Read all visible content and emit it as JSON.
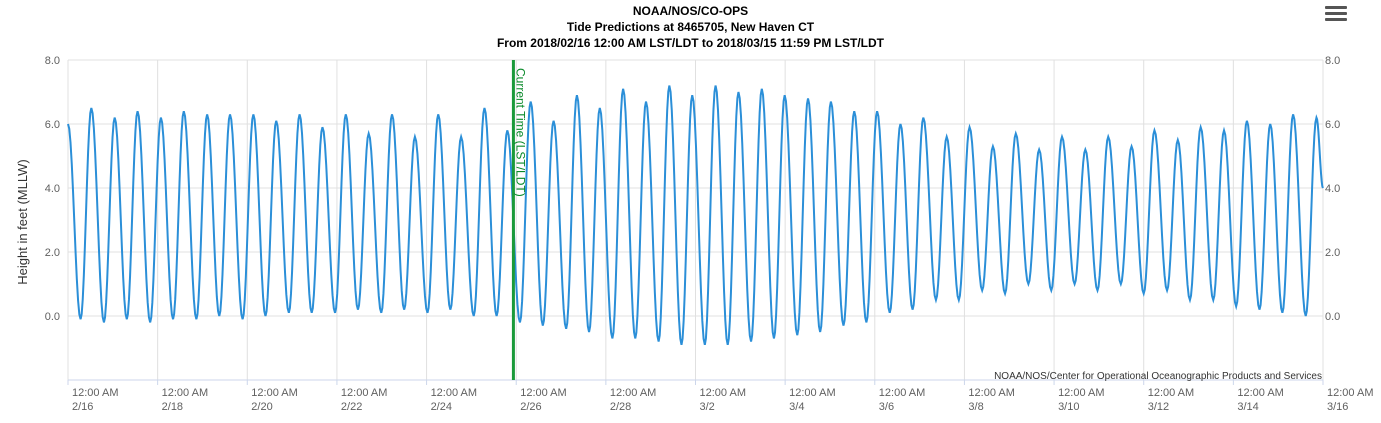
{
  "header": {
    "line1": "NOAA/NOS/CO-OPS",
    "line2": "Tide Predictions at 8465705, New Haven CT",
    "line3": "From 2018/02/16 12:00 AM LST/LDT to 2018/03/15 11:59 PM LST/LDT",
    "menu_icon": "hamburger-menu-icon"
  },
  "chart_data": {
    "type": "line",
    "title": "Tide Predictions at 8465705, New Haven CT",
    "ylabel": "Height in feet (MLLW)",
    "xlabel": "",
    "ylim": [
      -2,
      8
    ],
    "yticks": [
      "8.0",
      "6.0",
      "4.0",
      "2.0",
      "0.0"
    ],
    "xlim": [
      "2018-02-16T00:00",
      "2018-03-16T00:00"
    ],
    "xticks": [
      {
        "time": "12:00 AM",
        "date": "2/16"
      },
      {
        "time": "12:00 AM",
        "date": "2/18"
      },
      {
        "time": "12:00 AM",
        "date": "2/20"
      },
      {
        "time": "12:00 AM",
        "date": "2/22"
      },
      {
        "time": "12:00 AM",
        "date": "2/24"
      },
      {
        "time": "12:00 AM",
        "date": "2/26"
      },
      {
        "time": "12:00 AM",
        "date": "2/28"
      },
      {
        "time": "12:00 AM",
        "date": "3/2"
      },
      {
        "time": "12:00 AM",
        "date": "3/4"
      },
      {
        "time": "12:00 AM",
        "date": "3/6"
      },
      {
        "time": "12:00 AM",
        "date": "3/8"
      },
      {
        "time": "12:00 AM",
        "date": "3/10"
      },
      {
        "time": "12:00 AM",
        "date": "3/12"
      },
      {
        "time": "12:00 AM",
        "date": "3/14"
      },
      {
        "time": "12:00 AM",
        "date": "3/16"
      }
    ],
    "grid": true,
    "series": [
      {
        "color": "#2b8fd8",
        "values": [
          {
            "t": "2018-02-16T00:00",
            "h": 6.0
          },
          {
            "t": "2018-02-16T06:45",
            "h": -0.1
          },
          {
            "t": "2018-02-16T12:30",
            "h": 6.5
          },
          {
            "t": "2018-02-16T19:15",
            "h": -0.2
          },
          {
            "t": "2018-02-17T01:00",
            "h": 6.2
          },
          {
            "t": "2018-02-17T07:30",
            "h": -0.1
          },
          {
            "t": "2018-02-17T13:15",
            "h": 6.4
          },
          {
            "t": "2018-02-17T20:00",
            "h": -0.2
          },
          {
            "t": "2018-02-18T01:45",
            "h": 6.2
          },
          {
            "t": "2018-02-18T08:15",
            "h": -0.1
          },
          {
            "t": "2018-02-18T14:00",
            "h": 6.4
          },
          {
            "t": "2018-02-18T20:45",
            "h": -0.1
          },
          {
            "t": "2018-02-19T02:30",
            "h": 6.3
          },
          {
            "t": "2018-02-19T09:00",
            "h": 0.0
          },
          {
            "t": "2018-02-19T14:45",
            "h": 6.3
          },
          {
            "t": "2018-02-19T21:30",
            "h": -0.1
          },
          {
            "t": "2018-02-20T03:15",
            "h": 6.3
          },
          {
            "t": "2018-02-20T09:45",
            "h": 0.0
          },
          {
            "t": "2018-02-20T15:30",
            "h": 6.1
          },
          {
            "t": "2018-02-20T22:15",
            "h": 0.1
          },
          {
            "t": "2018-02-21T04:00",
            "h": 6.3
          },
          {
            "t": "2018-02-21T10:30",
            "h": 0.1
          },
          {
            "t": "2018-02-21T16:15",
            "h": 5.9
          },
          {
            "t": "2018-02-21T23:00",
            "h": 0.1
          },
          {
            "t": "2018-02-22T04:45",
            "h": 6.3
          },
          {
            "t": "2018-02-22T11:15",
            "h": 0.2
          },
          {
            "t": "2018-02-22T17:00",
            "h": 5.7
          },
          {
            "t": "2018-02-22T23:45",
            "h": 0.1
          },
          {
            "t": "2018-02-23T05:30",
            "h": 6.3
          },
          {
            "t": "2018-02-23T12:00",
            "h": 0.2
          },
          {
            "t": "2018-02-23T17:45",
            "h": 5.6
          },
          {
            "t": "2018-02-24T00:30",
            "h": 0.1
          },
          {
            "t": "2018-02-24T06:15",
            "h": 6.3
          },
          {
            "t": "2018-02-24T12:45",
            "h": 0.2
          },
          {
            "t": "2018-02-24T18:30",
            "h": 5.6
          },
          {
            "t": "2018-02-25T01:15",
            "h": 0.0
          },
          {
            "t": "2018-02-25T07:00",
            "h": 6.5
          },
          {
            "t": "2018-02-25T13:30",
            "h": 0.0
          },
          {
            "t": "2018-02-25T19:15",
            "h": 5.8
          },
          {
            "t": "2018-02-26T02:00",
            "h": -0.2
          },
          {
            "t": "2018-02-26T07:45",
            "h": 6.7
          },
          {
            "t": "2018-02-26T14:15",
            "h": -0.3
          },
          {
            "t": "2018-02-26T20:00",
            "h": 6.1
          },
          {
            "t": "2018-02-27T02:45",
            "h": -0.4
          },
          {
            "t": "2018-02-27T08:30",
            "h": 6.9
          },
          {
            "t": "2018-02-27T15:00",
            "h": -0.5
          },
          {
            "t": "2018-02-27T20:45",
            "h": 6.5
          },
          {
            "t": "2018-02-28T03:30",
            "h": -0.7
          },
          {
            "t": "2018-02-28T09:15",
            "h": 7.1
          },
          {
            "t": "2018-02-28T15:45",
            "h": -0.7
          },
          {
            "t": "2018-02-28T21:30",
            "h": 6.7
          },
          {
            "t": "2018-03-01T04:15",
            "h": -0.8
          },
          {
            "t": "2018-03-01T10:00",
            "h": 7.2
          },
          {
            "t": "2018-03-01T16:30",
            "h": -0.9
          },
          {
            "t": "2018-03-01T22:15",
            "h": 6.9
          },
          {
            "t": "2018-03-02T05:00",
            "h": -0.9
          },
          {
            "t": "2018-03-02T10:45",
            "h": 7.2
          },
          {
            "t": "2018-03-02T17:15",
            "h": -0.9
          },
          {
            "t": "2018-03-02T23:00",
            "h": 7.0
          },
          {
            "t": "2018-03-03T05:45",
            "h": -0.8
          },
          {
            "t": "2018-03-03T11:30",
            "h": 7.1
          },
          {
            "t": "2018-03-03T18:00",
            "h": -0.7
          },
          {
            "t": "2018-03-03T23:45",
            "h": 6.9
          },
          {
            "t": "2018-03-04T06:30",
            "h": -0.6
          },
          {
            "t": "2018-03-04T12:15",
            "h": 6.8
          },
          {
            "t": "2018-03-04T18:45",
            "h": -0.5
          },
          {
            "t": "2018-03-05T00:30",
            "h": 6.7
          },
          {
            "t": "2018-03-05T07:15",
            "h": -0.3
          },
          {
            "t": "2018-03-05T13:00",
            "h": 6.4
          },
          {
            "t": "2018-03-05T19:30",
            "h": -0.2
          },
          {
            "t": "2018-03-06T01:15",
            "h": 6.4
          },
          {
            "t": "2018-03-06T08:00",
            "h": 0.1
          },
          {
            "t": "2018-03-06T13:45",
            "h": 6.0
          },
          {
            "t": "2018-03-06T20:15",
            "h": 0.2
          },
          {
            "t": "2018-03-07T02:00",
            "h": 6.2
          },
          {
            "t": "2018-03-07T08:45",
            "h": 0.5
          },
          {
            "t": "2018-03-07T14:30",
            "h": 5.6
          },
          {
            "t": "2018-03-07T21:00",
            "h": 0.5
          },
          {
            "t": "2018-03-08T02:45",
            "h": 5.9
          },
          {
            "t": "2018-03-08T09:30",
            "h": 0.8
          },
          {
            "t": "2018-03-08T15:15",
            "h": 5.3
          },
          {
            "t": "2018-03-08T21:45",
            "h": 0.7
          },
          {
            "t": "2018-03-09T03:30",
            "h": 5.7
          },
          {
            "t": "2018-03-09T10:15",
            "h": 1.0
          },
          {
            "t": "2018-03-09T16:00",
            "h": 5.2
          },
          {
            "t": "2018-03-09T22:30",
            "h": 0.8
          },
          {
            "t": "2018-03-10T04:15",
            "h": 5.6
          },
          {
            "t": "2018-03-10T11:00",
            "h": 1.0
          },
          {
            "t": "2018-03-10T16:45",
            "h": 5.2
          },
          {
            "t": "2018-03-10T23:15",
            "h": 0.8
          },
          {
            "t": "2018-03-11T05:00",
            "h": 5.6
          },
          {
            "t": "2018-03-11T11:45",
            "h": 1.0
          },
          {
            "t": "2018-03-11T17:30",
            "h": 5.3
          },
          {
            "t": "2018-03-12T00:00",
            "h": 0.7
          },
          {
            "t": "2018-03-12T05:45",
            "h": 5.8
          },
          {
            "t": "2018-03-12T12:30",
            "h": 0.8
          },
          {
            "t": "2018-03-12T18:15",
            "h": 5.5
          },
          {
            "t": "2018-03-13T00:45",
            "h": 0.5
          },
          {
            "t": "2018-03-13T06:30",
            "h": 5.9
          },
          {
            "t": "2018-03-13T13:15",
            "h": 0.5
          },
          {
            "t": "2018-03-13T19:00",
            "h": 5.8
          },
          {
            "t": "2018-03-14T01:30",
            "h": 0.3
          },
          {
            "t": "2018-03-14T07:15",
            "h": 6.1
          },
          {
            "t": "2018-03-14T14:00",
            "h": 0.2
          },
          {
            "t": "2018-03-14T19:45",
            "h": 6.0
          },
          {
            "t": "2018-03-15T02:15",
            "h": 0.1
          },
          {
            "t": "2018-03-15T08:00",
            "h": 6.3
          },
          {
            "t": "2018-03-15T14:45",
            "h": 0.0
          },
          {
            "t": "2018-03-15T20:30",
            "h": 6.2
          },
          {
            "t": "2018-03-15T23:59",
            "h": 4.0
          }
        ]
      }
    ],
    "plot_line": {
      "label": "Current Time (LST/LDT)",
      "t": "2018-02-25T22:30",
      "color": "#1a9a3a"
    },
    "credit": "NOAA/NOS/Center for Operational Oceanographic Products and Services"
  }
}
